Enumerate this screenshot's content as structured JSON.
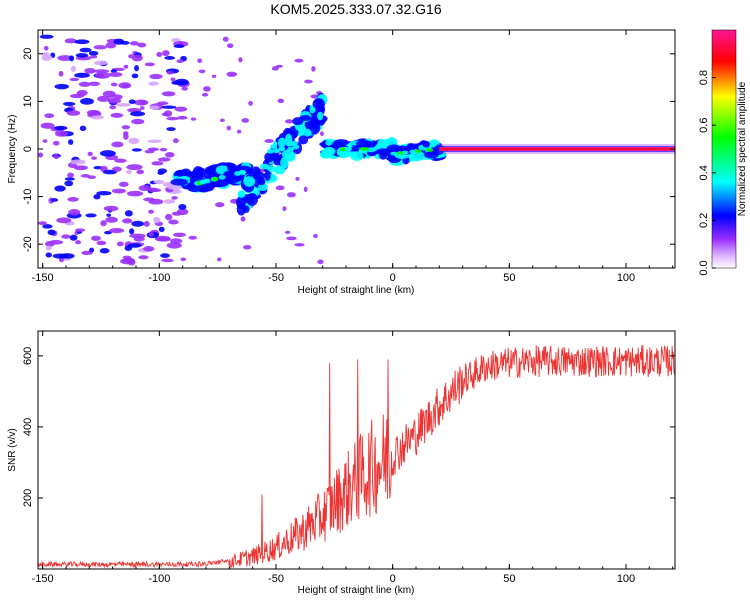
{
  "title": "KOM5.2025.333.07.32.G16",
  "chart_data": [
    {
      "type": "heatmap",
      "name": "spectrogram",
      "xlabel": "Height of straight line (km)",
      "ylabel": "Frequency (Hz)",
      "xlim": [
        -152,
        121
      ],
      "ylim": [
        -25,
        25
      ],
      "xticks": [
        -150,
        -100,
        -50,
        0,
        50,
        100
      ],
      "yticks": [
        -20,
        -10,
        0,
        10,
        20
      ],
      "colorbar": {
        "label": "Normalized spectral amplitude",
        "range": [
          0,
          1
        ],
        "ticks": [
          "0.0",
          "0.2",
          "0.4",
          "0.6",
          "0.8"
        ],
        "colors": [
          "#ffffff",
          "#d6a5ff",
          "#9b30ff",
          "#0000ff",
          "#00ffff",
          "#00ff00",
          "#ffff00",
          "#ff0000",
          "#ff1493"
        ]
      },
      "features": [
        {
          "x": [
            20,
            120
          ],
          "freq": 0,
          "amplitude": 0.95,
          "description": "strong signal line"
        },
        {
          "x": [
            -5,
            20
          ],
          "freq": [
            -2,
            0
          ],
          "amplitude": 0.4
        },
        {
          "x": [
            -30,
            -5
          ],
          "freq": [
            -1,
            1
          ],
          "amplitude": 0.3
        },
        {
          "x": [
            -92,
            -62
          ],
          "freq": [
            -9,
            -5
          ],
          "amplitude": 0.3
        }
      ]
    },
    {
      "type": "line",
      "name": "snr",
      "xlabel": "Height of straight line (km)",
      "ylabel": "SNR (v/v)",
      "xlim": [
        -152,
        121
      ],
      "ylim": [
        0,
        670
      ],
      "xticks": [
        -150,
        -100,
        -50,
        0,
        50,
        100
      ],
      "yticks": [
        200,
        400,
        600
      ],
      "color": "#ee3333",
      "x": [
        -152,
        -120,
        -100,
        -90,
        -80,
        -70,
        -60,
        -50,
        -40,
        -30,
        -20,
        -10,
        -5,
        0,
        5,
        10,
        20,
        30,
        40,
        50,
        60,
        70,
        80,
        90,
        100,
        110,
        121
      ],
      "y": [
        10,
        10,
        10,
        10,
        12,
        20,
        35,
        60,
        100,
        150,
        220,
        280,
        300,
        320,
        350,
        380,
        460,
        530,
        570,
        580,
        585,
        585,
        585,
        585,
        585,
        585,
        585
      ],
      "spikes": [
        {
          "x": -56,
          "y": 210
        },
        {
          "x": -27,
          "y": 580
        },
        {
          "x": -15,
          "y": 590
        },
        {
          "x": -2,
          "y": 590
        }
      ]
    }
  ]
}
